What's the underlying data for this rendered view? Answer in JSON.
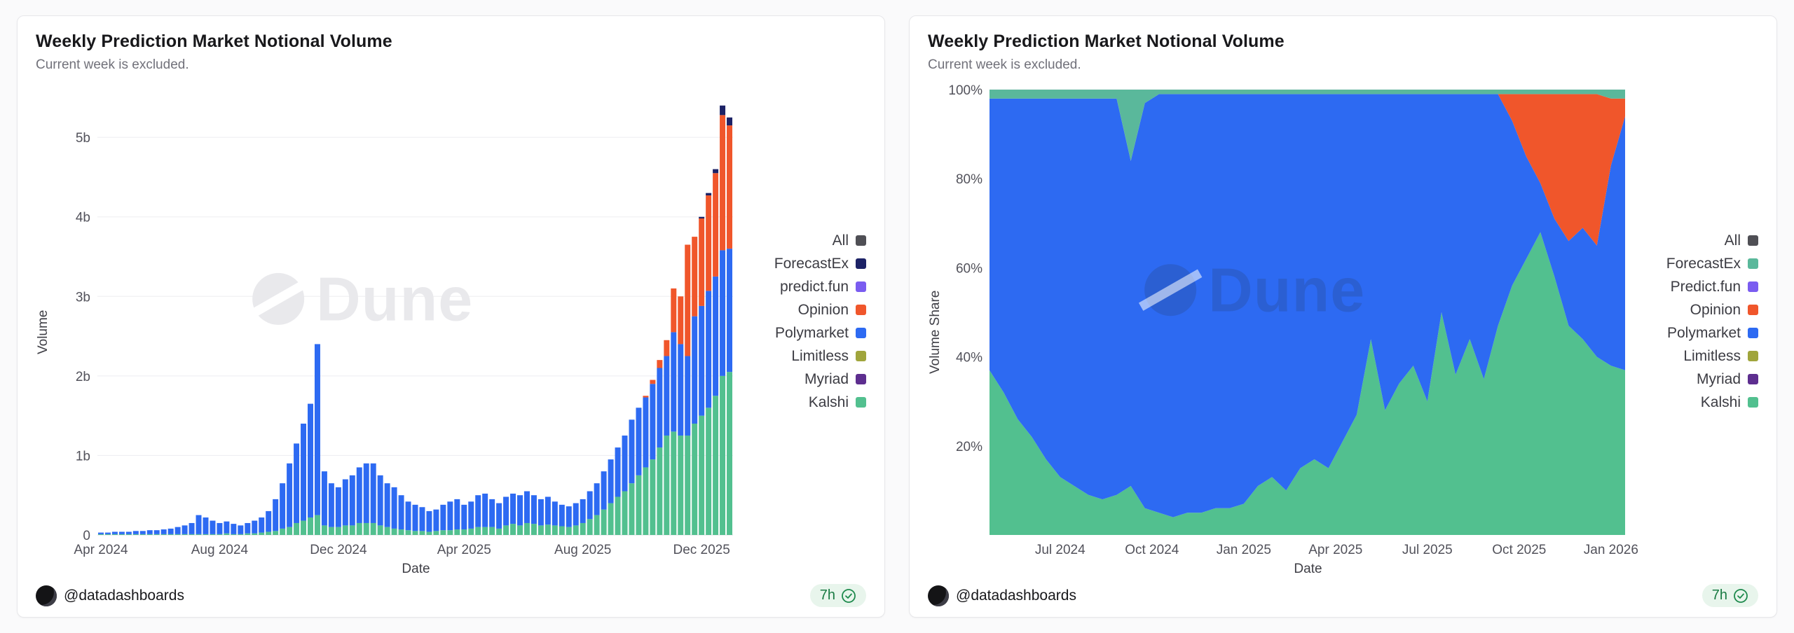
{
  "page": {
    "background": "#fafafb",
    "accent_green": "#187a42"
  },
  "charts": {
    "left": {
      "title": "Weekly Prediction Market Notional Volume",
      "subtitle": "Current week is excluded.",
      "ylabel": "Volume",
      "xlabel": "Date",
      "legend": [
        {
          "label": "All",
          "color": "#4f4f55"
        },
        {
          "label": "ForecastEx",
          "color": "#1c2266"
        },
        {
          "label": "predict.fun",
          "color": "#7a5cf0"
        },
        {
          "label": "Opinion",
          "color": "#f0562b"
        },
        {
          "label": "Polymarket",
          "color": "#2d6af2"
        },
        {
          "label": "Limitless",
          "color": "#a0a53c"
        },
        {
          "label": "Myriad",
          "color": "#5d2e8f"
        },
        {
          "label": "Kalshi",
          "color": "#52c08f"
        }
      ],
      "footer": {
        "handle": "@datadashboards",
        "updated": "7h"
      }
    },
    "right": {
      "title": "Weekly Prediction Market Notional Volume",
      "subtitle": "Current week is excluded.",
      "ylabel": "Volume Share",
      "xlabel": "Date",
      "legend": [
        {
          "label": "All",
          "color": "#4f4f55"
        },
        {
          "label": "ForecastEx",
          "color": "#5ab89b"
        },
        {
          "label": "Predict.fun",
          "color": "#7a5cf0"
        },
        {
          "label": "Opinion",
          "color": "#f0562b"
        },
        {
          "label": "Polymarket",
          "color": "#2d6af2"
        },
        {
          "label": "Limitless",
          "color": "#a0a53c"
        },
        {
          "label": "Myriad",
          "color": "#5d2e8f"
        },
        {
          "label": "Kalshi",
          "color": "#52c08f"
        }
      ],
      "footer": {
        "handle": "@datadashboards",
        "updated": "7h"
      }
    }
  },
  "chart_data": [
    {
      "id": "left",
      "type": "bar",
      "stacked": true,
      "title": "Weekly Prediction Market Notional Volume",
      "xlabel": "Date",
      "ylabel": "Volume",
      "unit": "USD notional (billions)",
      "ylim": [
        0,
        5.6
      ],
      "grid": "horizontal",
      "legend_position": "right",
      "yticks": [
        {
          "v": 0,
          "label": "0"
        },
        {
          "v": 1,
          "label": "1b"
        },
        {
          "v": 2,
          "label": "2b"
        },
        {
          "v": 3,
          "label": "3b"
        },
        {
          "v": 4,
          "label": "4b"
        },
        {
          "v": 5,
          "label": "5b"
        }
      ],
      "xticks": [
        {
          "label": "Apr 2024",
          "i": 0
        },
        {
          "label": "Aug 2024",
          "i": 17
        },
        {
          "label": "Dec 2024",
          "i": 34
        },
        {
          "label": "Apr 2025",
          "i": 52
        },
        {
          "label": "Aug 2025",
          "i": 69
        },
        {
          "label": "Dec 2025",
          "i": 86
        }
      ],
      "x_description": "91 weekly bars, Apr 2024 through Dec 2025",
      "series": [
        {
          "name": "Kalshi",
          "color": "#52c08f",
          "values": [
            0.01,
            0.01,
            0.01,
            0.01,
            0.01,
            0.01,
            0.01,
            0.01,
            0.01,
            0.01,
            0.01,
            0.01,
            0.01,
            0.01,
            0.01,
            0.01,
            0.01,
            0.01,
            0.02,
            0.01,
            0.01,
            0.02,
            0.02,
            0.03,
            0.04,
            0.05,
            0.08,
            0.1,
            0.15,
            0.18,
            0.22,
            0.25,
            0.12,
            0.1,
            0.1,
            0.12,
            0.12,
            0.15,
            0.15,
            0.15,
            0.12,
            0.1,
            0.08,
            0.07,
            0.06,
            0.05,
            0.05,
            0.04,
            0.05,
            0.06,
            0.06,
            0.07,
            0.07,
            0.08,
            0.1,
            0.1,
            0.1,
            0.08,
            0.12,
            0.14,
            0.12,
            0.15,
            0.14,
            0.12,
            0.13,
            0.12,
            0.11,
            0.1,
            0.12,
            0.15,
            0.2,
            0.25,
            0.32,
            0.4,
            0.48,
            0.55,
            0.65,
            0.75,
            0.85,
            0.95,
            1.1,
            1.25,
            1.3,
            1.25,
            1.25,
            1.4,
            1.5,
            1.6,
            1.75,
            2.0,
            2.05
          ]
        },
        {
          "name": "Polymarket",
          "color": "#2d6af2",
          "values": [
            0.02,
            0.02,
            0.03,
            0.03,
            0.03,
            0.04,
            0.04,
            0.05,
            0.05,
            0.06,
            0.07,
            0.09,
            0.11,
            0.14,
            0.24,
            0.21,
            0.17,
            0.14,
            0.15,
            0.13,
            0.11,
            0.13,
            0.16,
            0.19,
            0.26,
            0.4,
            0.57,
            0.8,
            1.0,
            1.22,
            1.43,
            2.15,
            0.68,
            0.55,
            0.5,
            0.58,
            0.63,
            0.7,
            0.75,
            0.75,
            0.63,
            0.55,
            0.52,
            0.43,
            0.36,
            0.33,
            0.3,
            0.26,
            0.27,
            0.32,
            0.36,
            0.38,
            0.31,
            0.34,
            0.4,
            0.42,
            0.35,
            0.32,
            0.36,
            0.38,
            0.38,
            0.4,
            0.36,
            0.33,
            0.35,
            0.3,
            0.27,
            0.26,
            0.28,
            0.3,
            0.35,
            0.4,
            0.48,
            0.55,
            0.62,
            0.7,
            0.8,
            0.85,
            0.88,
            0.95,
            1.0,
            1.0,
            1.25,
            1.15,
            1.0,
            1.35,
            1.38,
            1.47,
            1.5,
            1.58,
            1.55
          ]
        },
        {
          "name": "Opinion",
          "color": "#f0562b",
          "values": [
            0,
            0,
            0,
            0,
            0,
            0,
            0,
            0,
            0,
            0,
            0,
            0,
            0,
            0,
            0,
            0,
            0,
            0,
            0,
            0,
            0,
            0,
            0,
            0,
            0,
            0,
            0,
            0,
            0,
            0,
            0,
            0,
            0,
            0,
            0,
            0,
            0,
            0,
            0,
            0,
            0,
            0,
            0,
            0,
            0,
            0,
            0,
            0,
            0,
            0,
            0,
            0,
            0,
            0,
            0,
            0,
            0,
            0,
            0,
            0,
            0,
            0,
            0,
            0,
            0,
            0,
            0,
            0,
            0,
            0,
            0,
            0,
            0,
            0,
            0,
            0,
            0,
            0,
            0.02,
            0.05,
            0.1,
            0.2,
            0.55,
            0.6,
            1.4,
            1.0,
            1.1,
            1.2,
            1.3,
            1.7,
            1.55
          ]
        },
        {
          "name": "ForecastEx",
          "color": "#1c2266",
          "values": [
            0,
            0,
            0,
            0,
            0,
            0,
            0,
            0,
            0,
            0,
            0,
            0,
            0,
            0,
            0,
            0,
            0,
            0,
            0,
            0,
            0,
            0,
            0,
            0,
            0,
            0,
            0,
            0,
            0,
            0,
            0,
            0,
            0,
            0,
            0,
            0,
            0,
            0,
            0,
            0,
            0,
            0,
            0,
            0,
            0,
            0,
            0,
            0,
            0,
            0,
            0,
            0,
            0,
            0,
            0,
            0,
            0,
            0,
            0,
            0,
            0,
            0,
            0,
            0,
            0,
            0,
            0,
            0,
            0,
            0,
            0,
            0,
            0,
            0,
            0,
            0,
            0,
            0,
            0,
            0,
            0,
            0,
            0,
            0,
            0,
            0,
            0.02,
            0.03,
            0.05,
            0.12,
            0.1
          ]
        }
      ]
    },
    {
      "id": "right",
      "type": "area",
      "stacked": true,
      "percent": true,
      "title": "Weekly Prediction Market Notional Volume",
      "xlabel": "Date",
      "ylabel": "Volume Share",
      "unit": "percent of weekly notional volume",
      "ylim": [
        0,
        100
      ],
      "grid": "horizontal",
      "legend_position": "right",
      "yticks": [
        {
          "v": 20,
          "label": "20%"
        },
        {
          "v": 40,
          "label": "40%"
        },
        {
          "v": 60,
          "label": "60%"
        },
        {
          "v": 80,
          "label": "80%"
        },
        {
          "v": 100,
          "label": "100%"
        }
      ],
      "xticks": [
        {
          "label": "Jul 2024",
          "i": 5
        },
        {
          "label": "Oct 2024",
          "i": 11.5
        },
        {
          "label": "Jan 2025",
          "i": 18
        },
        {
          "label": "Apr 2025",
          "i": 24.5
        },
        {
          "label": "Jul 2025",
          "i": 31
        },
        {
          "label": "Oct 2025",
          "i": 37.5
        },
        {
          "label": "Jan 2026",
          "i": 44
        }
      ],
      "x_description": "46 samples (roughly biweekly), late Apr 2024 through Jan 2026",
      "series": [
        {
          "name": "Kalshi",
          "color": "#52c08f",
          "values": [
            37,
            32,
            26,
            22,
            17,
            13,
            11,
            9,
            8,
            9,
            11,
            6,
            5,
            4,
            5,
            5,
            6,
            6,
            7,
            11,
            13,
            10,
            15,
            17,
            15,
            21,
            27,
            44,
            28,
            34,
            38,
            30,
            50,
            36,
            44,
            35,
            47,
            56,
            62,
            68,
            58,
            47,
            44,
            40,
            38,
            37
          ]
        },
        {
          "name": "Polymarket",
          "color": "#2d6af2",
          "values": [
            61,
            66,
            72,
            76,
            81,
            85,
            87,
            89,
            90,
            89,
            73,
            91,
            94,
            95,
            94,
            94,
            93,
            93,
            92,
            88,
            86,
            89,
            84,
            82,
            84,
            78,
            72,
            55,
            71,
            65,
            61,
            69,
            49,
            63,
            55,
            64,
            52,
            37,
            23,
            11,
            13,
            19,
            25,
            25,
            45,
            57
          ]
        },
        {
          "name": "Opinion",
          "color": "#f0562b",
          "values": [
            0,
            0,
            0,
            0,
            0,
            0,
            0,
            0,
            0,
            0,
            0,
            0,
            0,
            0,
            0,
            0,
            0,
            0,
            0,
            0,
            0,
            0,
            0,
            0,
            0,
            0,
            0,
            0,
            0,
            0,
            0,
            0,
            0,
            0,
            0,
            0,
            0,
            6,
            14,
            20,
            28,
            33,
            30,
            34,
            15,
            4
          ]
        },
        {
          "name": "ForecastEx",
          "color": "#5ab89b",
          "values": [
            2,
            2,
            2,
            2,
            2,
            2,
            2,
            2,
            2,
            2,
            16,
            3,
            1,
            1,
            1,
            1,
            1,
            1,
            1,
            1,
            1,
            1,
            1,
            1,
            1,
            1,
            1,
            1,
            1,
            1,
            1,
            1,
            1,
            1,
            1,
            1,
            1,
            1,
            1,
            1,
            1,
            1,
            1,
            1,
            2,
            2
          ]
        }
      ]
    }
  ]
}
